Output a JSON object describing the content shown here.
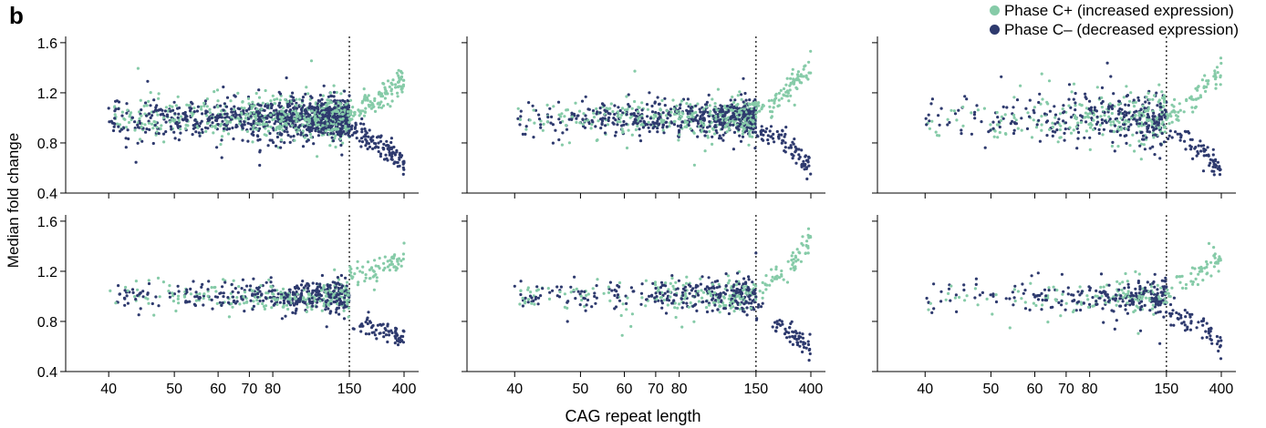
{
  "figure": {
    "panel_letter": "b",
    "ylabel": "Median fold change",
    "xlabel": "CAG repeat length"
  },
  "legend": {
    "items": [
      {
        "label": "Phase C+ (increased expression)",
        "color": "#86cba8"
      },
      {
        "label": "Phase C– (decreased expression)",
        "color": "#2e3a6e"
      }
    ]
  },
  "chart_data": {
    "type": "scatter",
    "layout": "2x3 small multiples",
    "y_ticks": [
      "0.4",
      "0.8",
      "1.2",
      "1.6"
    ],
    "ylim": [
      0.4,
      1.65
    ],
    "x_ticks": [
      "40",
      "50",
      "60",
      "70",
      "80",
      "150",
      "400"
    ],
    "x_scale": "reciprocal (1/CAG)",
    "xlim": [
      37,
      450
    ],
    "threshold_line": {
      "x": 150,
      "style": "dotted"
    },
    "series_colors": {
      "Phase C+": "#86cba8",
      "Phase C–": "#2e3a6e"
    },
    "panels": [
      {
        "row": 1,
        "col": 1,
        "density": 1500,
        "noise": 0.085,
        "plus_tail": {
          "x": [
            150,
            400
          ],
          "y": [
            1.05,
            1.32
          ]
        },
        "minus_tail": {
          "x": [
            150,
            400
          ],
          "y": [
            0.92,
            0.62
          ]
        }
      },
      {
        "row": 1,
        "col": 2,
        "density": 900,
        "noise": 0.07,
        "plus_tail": {
          "x": [
            150,
            400
          ],
          "y": [
            1.05,
            1.42
          ]
        },
        "minus_tail": {
          "x": [
            150,
            400
          ],
          "y": [
            0.9,
            0.62
          ]
        }
      },
      {
        "row": 1,
        "col": 3,
        "density": 550,
        "noise": 0.1,
        "plus_tail": {
          "x": [
            150,
            400
          ],
          "y": [
            1.0,
            1.4
          ]
        },
        "minus_tail": {
          "x": [
            150,
            400
          ],
          "y": [
            0.9,
            0.58
          ]
        }
      },
      {
        "row": 2,
        "col": 1,
        "density": 600,
        "noise": 0.06,
        "plus_tail": {
          "x": [
            150,
            400
          ],
          "y": [
            1.15,
            1.33
          ]
        },
        "minus_tail": {
          "x": [
            150,
            400
          ],
          "y": [
            0.8,
            0.65
          ]
        }
      },
      {
        "row": 2,
        "col": 2,
        "density": 480,
        "noise": 0.07,
        "plus_tail": {
          "x": [
            150,
            400
          ],
          "y": [
            1.05,
            1.45
          ]
        },
        "minus_tail": {
          "x": [
            150,
            400
          ],
          "y": [
            0.88,
            0.55
          ]
        }
      },
      {
        "row": 2,
        "col": 3,
        "density": 380,
        "noise": 0.07,
        "plus_tail": {
          "x": [
            150,
            400
          ],
          "y": [
            1.05,
            1.32
          ]
        },
        "minus_tail": {
          "x": [
            150,
            400
          ],
          "y": [
            0.88,
            0.62
          ]
        }
      }
    ]
  }
}
